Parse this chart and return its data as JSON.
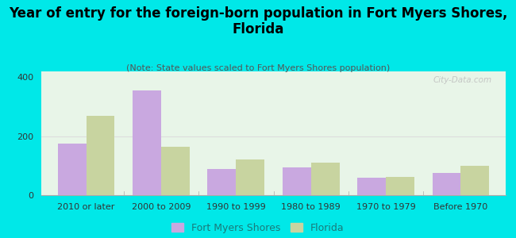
{
  "title": "Year of entry for the foreign-born population in Fort Myers Shores,\nFlorida",
  "subtitle": "(Note: State values scaled to Fort Myers Shores population)",
  "categories": [
    "2010 or later",
    "2000 to 2009",
    "1990 to 1999",
    "1980 to 1989",
    "1970 to 1979",
    "Before 1970"
  ],
  "fort_myers_values": [
    175,
    355,
    90,
    95,
    60,
    75
  ],
  "florida_values": [
    270,
    165,
    120,
    110,
    62,
    100
  ],
  "bar_color_fm": "#c9a8e0",
  "bar_color_fl": "#c8d4a0",
  "background_outer": "#00e8e8",
  "background_inner": "#e8f5e8",
  "ylim": [
    0,
    420
  ],
  "yticks": [
    0,
    200,
    400
  ],
  "legend_label_fm": "Fort Myers Shores",
  "legend_label_fl": "Florida",
  "watermark": "City-Data.com",
  "bar_width": 0.38,
  "title_fontsize": 12,
  "subtitle_fontsize": 8,
  "tick_fontsize": 8,
  "legend_fontsize": 9
}
